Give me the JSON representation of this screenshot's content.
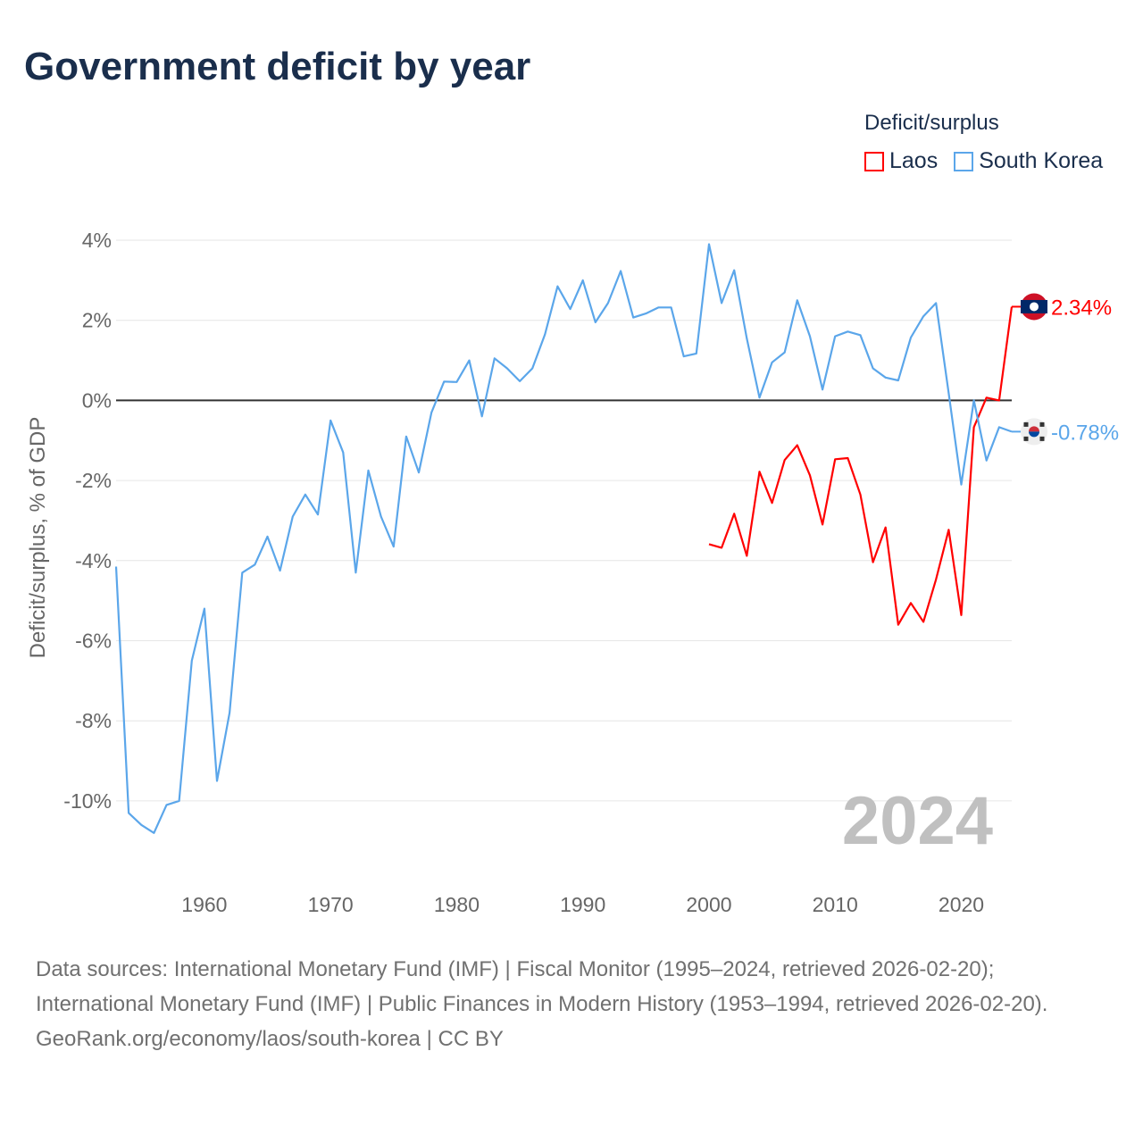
{
  "chart_data": {
    "type": "line",
    "title": "Government deficit by year",
    "xlabel": "",
    "ylabel": "Deficit/surplus, % of GDP",
    "xlim": [
      1953,
      2024
    ],
    "ylim": [
      -11,
      4.4
    ],
    "xticks": [
      1960,
      1970,
      1980,
      1990,
      2000,
      2010,
      2020
    ],
    "yticks": [
      4,
      2,
      0,
      -2,
      -4,
      -6,
      -8,
      -10
    ],
    "ytick_labels": [
      "4%",
      "2%",
      "0%",
      "-2%",
      "-4%",
      "-6%",
      "-8%",
      "-10%"
    ],
    "grid": true,
    "legend_title": "Deficit/surplus",
    "legend_position": "top-right",
    "watermark_year": "2024",
    "series": [
      {
        "name": "Laos",
        "color": "#ff0000",
        "end_label": "2.34%",
        "x": [
          2000,
          2001,
          2002,
          2003,
          2004,
          2005,
          2006,
          2007,
          2008,
          2009,
          2010,
          2011,
          2012,
          2013,
          2014,
          2015,
          2016,
          2017,
          2018,
          2019,
          2020,
          2021,
          2022,
          2023,
          2024
        ],
        "values": [
          -3.59,
          -3.68,
          -2.83,
          -3.88,
          -1.78,
          -2.56,
          -1.49,
          -1.12,
          -1.87,
          -3.1,
          -1.47,
          -1.44,
          -2.35,
          -4.04,
          -3.17,
          -5.6,
          -5.06,
          -5.53,
          -4.47,
          -3.23,
          -5.36,
          -0.67,
          0.07,
          0.0,
          2.34
        ]
      },
      {
        "name": "South Korea",
        "color": "#5ba6ea",
        "end_label": "-0.78%",
        "x": [
          1953,
          1954,
          1955,
          1956,
          1957,
          1958,
          1959,
          1960,
          1961,
          1962,
          1963,
          1964,
          1965,
          1966,
          1967,
          1968,
          1969,
          1970,
          1971,
          1972,
          1973,
          1974,
          1975,
          1976,
          1977,
          1978,
          1979,
          1980,
          1981,
          1982,
          1983,
          1984,
          1985,
          1986,
          1987,
          1988,
          1989,
          1990,
          1991,
          1992,
          1993,
          1994,
          1995,
          1996,
          1997,
          1998,
          1999,
          2000,
          2001,
          2002,
          2003,
          2004,
          2005,
          2006,
          2007,
          2008,
          2009,
          2010,
          2011,
          2012,
          2013,
          2014,
          2015,
          2016,
          2017,
          2018,
          2019,
          2020,
          2021,
          2022,
          2023,
          2024
        ],
        "values": [
          -4.15,
          -10.3,
          -10.6,
          -10.8,
          -10.1,
          -10.0,
          -6.5,
          -5.2,
          -9.5,
          -7.8,
          -4.3,
          -4.1,
          -3.4,
          -4.25,
          -2.9,
          -2.35,
          -2.85,
          -0.5,
          -1.3,
          -4.3,
          -1.75,
          -2.9,
          -3.65,
          -0.9,
          -1.8,
          -0.3,
          0.47,
          0.46,
          1.0,
          -0.4,
          1.05,
          0.8,
          0.48,
          0.8,
          1.65,
          2.85,
          2.28,
          3.0,
          1.95,
          2.43,
          3.23,
          2.07,
          2.17,
          2.32,
          2.32,
          1.1,
          1.17,
          3.9,
          2.43,
          3.25,
          1.55,
          0.07,
          0.95,
          1.2,
          2.5,
          1.6,
          0.27,
          1.6,
          1.72,
          1.63,
          0.8,
          0.57,
          0.5,
          1.57,
          2.1,
          2.43,
          0.18,
          -2.1,
          0.0,
          -1.5,
          -0.67,
          -0.78
        ]
      }
    ]
  },
  "footer": {
    "sources_line": "Data sources: International Monetary Fund (IMF) | Fiscal Monitor (1995–2024, retrieved 2026-02-20); International Monetary Fund (IMF) | Public Finances in Modern History (1953–1994, retrieved 2026-02-20).",
    "link": "GeoRank.org/economy/laos/south-korea",
    "license": "CC BY",
    "separator": " | "
  }
}
